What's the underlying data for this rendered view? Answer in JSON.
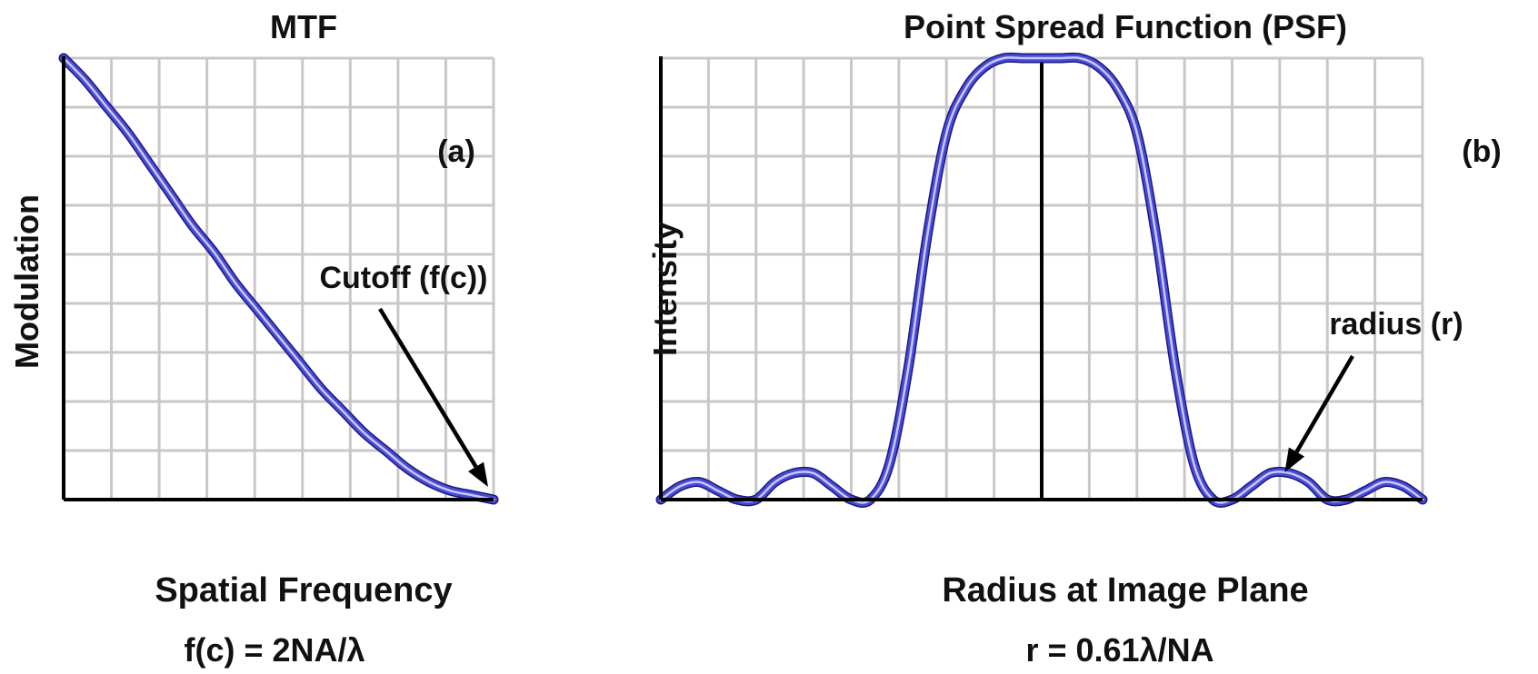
{
  "colors": {
    "curve": "#4a4ad6",
    "curve_highlight": "#c8c8ff",
    "grid": "#c8c8c8",
    "axis": "#000000",
    "text": "#111111"
  },
  "chart_data": [
    {
      "id": "mtf",
      "type": "line",
      "title": "MTF",
      "panel_label": "(a)",
      "xlabel": "Spatial Frequency",
      "ylabel": "Modulation",
      "formula": "f(c) = 2NA/λ",
      "xlim": [
        0,
        1
      ],
      "ylim": [
        0,
        1
      ],
      "grid": true,
      "series": [
        {
          "x": [
            0,
            0.05,
            0.1,
            0.15,
            0.2,
            0.25,
            0.3,
            0.35,
            0.4,
            0.45,
            0.5,
            0.55,
            0.6,
            0.65,
            0.7,
            0.75,
            0.8,
            0.85,
            0.9,
            0.95,
            1
          ],
          "values": [
            1.0,
            0.95,
            0.89,
            0.83,
            0.76,
            0.69,
            0.62,
            0.56,
            0.49,
            0.43,
            0.37,
            0.31,
            0.25,
            0.2,
            0.15,
            0.11,
            0.07,
            0.04,
            0.02,
            0.01,
            0.0
          ]
        }
      ],
      "annotation": {
        "text": "Cutoff (f(c))",
        "arrow_to": [
          1,
          0
        ]
      }
    },
    {
      "id": "psf",
      "type": "line",
      "title": "Point Spread Function (PSF)",
      "panel_label": "(b)",
      "xlabel": "Radius at Image Plane",
      "ylabel": "Intensity",
      "formula": "r = 0.61λ/NA",
      "xlim": [
        -1,
        1
      ],
      "ylim": [
        0,
        1
      ],
      "grid": true,
      "center_line": true,
      "series": [
        {
          "x": [
            -1.0,
            -0.95,
            -0.9,
            -0.85,
            -0.8,
            -0.75,
            -0.7,
            -0.65,
            -0.6,
            -0.55,
            -0.5,
            -0.45,
            -0.4,
            -0.35,
            -0.3,
            -0.25,
            -0.2,
            -0.15,
            -0.1,
            -0.05,
            0.0,
            0.05,
            0.1,
            0.15,
            0.2,
            0.25,
            0.3,
            0.35,
            0.4,
            0.45,
            0.5,
            0.55,
            0.6,
            0.65,
            0.7,
            0.75,
            0.8,
            0.85,
            0.9,
            0.95,
            1.0
          ],
          "values": [
            0.0,
            0.03,
            0.04,
            0.02,
            0.0,
            0.0,
            0.04,
            0.06,
            0.06,
            0.03,
            0.0,
            0.0,
            0.08,
            0.3,
            0.6,
            0.83,
            0.93,
            0.98,
            1.0,
            1.0,
            1.0,
            1.0,
            1.0,
            0.98,
            0.93,
            0.83,
            0.6,
            0.3,
            0.08,
            0.0,
            0.0,
            0.03,
            0.06,
            0.06,
            0.04,
            0.0,
            0.0,
            0.02,
            0.04,
            0.03,
            0.0
          ]
        }
      ],
      "annotation": {
        "text": "radius (r)",
        "arrow_to": [
          0.6,
          0
        ]
      }
    }
  ]
}
